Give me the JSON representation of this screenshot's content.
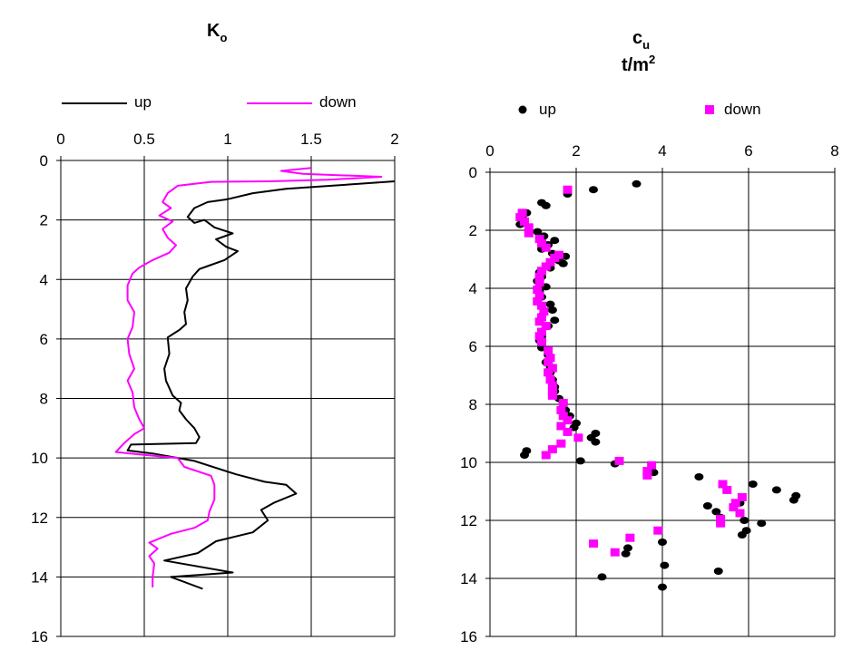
{
  "chart_data": [
    {
      "type": "line",
      "title": "K",
      "title_subscript": "o",
      "x_axis": {
        "range": [
          0,
          2
        ],
        "ticks": [
          0,
          0.5,
          1,
          1.5,
          2
        ],
        "tick_labels": [
          "0",
          "0.5",
          "1",
          "1.5",
          "2"
        ],
        "position": "top"
      },
      "y_axis": {
        "range": [
          0,
          16
        ],
        "reversed": true,
        "ticks": [
          0,
          2,
          4,
          6,
          8,
          10,
          12,
          14,
          16
        ],
        "tick_labels": [
          "0",
          "2",
          "4",
          "6",
          "8",
          "10",
          "12",
          "14",
          "16"
        ]
      },
      "grid": true,
      "legend": {
        "placement": "top"
      },
      "series": [
        {
          "name": "up",
          "color": "#000000",
          "points": [
            [
              2.0,
              0.7
            ],
            [
              1.62,
              0.85
            ],
            [
              1.35,
              0.95
            ],
            [
              1.15,
              1.1
            ],
            [
              1.0,
              1.3
            ],
            [
              0.88,
              1.4
            ],
            [
              0.8,
              1.6
            ],
            [
              0.76,
              1.9
            ],
            [
              0.8,
              2.1
            ],
            [
              0.86,
              2.0
            ],
            [
              0.92,
              2.25
            ],
            [
              1.03,
              2.45
            ],
            [
              0.93,
              2.65
            ],
            [
              0.99,
              2.9
            ],
            [
              1.06,
              3.05
            ],
            [
              0.98,
              3.35
            ],
            [
              0.88,
              3.55
            ],
            [
              0.83,
              3.65
            ],
            [
              0.79,
              3.9
            ],
            [
              0.75,
              4.3
            ],
            [
              0.76,
              4.7
            ],
            [
              0.74,
              5.1
            ],
            [
              0.75,
              5.5
            ],
            [
              0.71,
              5.7
            ],
            [
              0.64,
              5.95
            ],
            [
              0.65,
              6.5
            ],
            [
              0.62,
              7.0
            ],
            [
              0.63,
              7.4
            ],
            [
              0.67,
              7.9
            ],
            [
              0.72,
              8.15
            ],
            [
              0.71,
              8.4
            ],
            [
              0.75,
              8.7
            ],
            [
              0.8,
              9.0
            ],
            [
              0.83,
              9.3
            ],
            [
              0.81,
              9.5
            ],
            [
              0.42,
              9.55
            ],
            [
              0.4,
              9.75
            ],
            [
              0.55,
              9.85
            ],
            [
              0.8,
              10.1
            ],
            [
              1.05,
              10.55
            ],
            [
              1.22,
              10.8
            ],
            [
              1.35,
              10.9
            ],
            [
              1.41,
              11.2
            ],
            [
              1.28,
              11.5
            ],
            [
              1.2,
              11.75
            ],
            [
              1.24,
              12.1
            ],
            [
              1.15,
              12.5
            ],
            [
              0.93,
              12.8
            ],
            [
              0.82,
              13.2
            ],
            [
              0.62,
              13.45
            ],
            [
              1.03,
              13.85
            ],
            [
              0.66,
              14.0
            ],
            [
              0.85,
              14.4
            ]
          ]
        },
        {
          "name": "down",
          "color": "#ff00ff",
          "points": [
            [
              1.5,
              0.25
            ],
            [
              1.32,
              0.35
            ],
            [
              1.45,
              0.45
            ],
            [
              1.92,
              0.55
            ],
            [
              1.6,
              0.65
            ],
            [
              1.25,
              0.7
            ],
            [
              0.9,
              0.72
            ],
            [
              0.7,
              0.85
            ],
            [
              0.64,
              1.1
            ],
            [
              0.61,
              1.4
            ],
            [
              0.66,
              1.6
            ],
            [
              0.59,
              1.85
            ],
            [
              0.67,
              2.05
            ],
            [
              0.61,
              2.3
            ],
            [
              0.64,
              2.6
            ],
            [
              0.69,
              2.85
            ],
            [
              0.65,
              3.1
            ],
            [
              0.55,
              3.35
            ],
            [
              0.47,
              3.6
            ],
            [
              0.43,
              3.8
            ],
            [
              0.4,
              4.2
            ],
            [
              0.4,
              4.7
            ],
            [
              0.44,
              5.1
            ],
            [
              0.43,
              5.6
            ],
            [
              0.4,
              6.0
            ],
            [
              0.41,
              6.5
            ],
            [
              0.44,
              7.0
            ],
            [
              0.4,
              7.4
            ],
            [
              0.43,
              7.8
            ],
            [
              0.44,
              8.3
            ],
            [
              0.47,
              8.7
            ],
            [
              0.5,
              9.0
            ],
            [
              0.44,
              9.2
            ],
            [
              0.38,
              9.5
            ],
            [
              0.33,
              9.8
            ],
            [
              0.5,
              9.9
            ],
            [
              0.7,
              10.0
            ],
            [
              0.74,
              10.3
            ],
            [
              0.9,
              10.6
            ],
            [
              0.92,
              10.9
            ],
            [
              0.92,
              11.4
            ],
            [
              0.89,
              11.8
            ],
            [
              0.88,
              12.1
            ],
            [
              0.8,
              12.35
            ],
            [
              0.66,
              12.55
            ],
            [
              0.53,
              12.85
            ],
            [
              0.58,
              13.05
            ],
            [
              0.53,
              13.3
            ],
            [
              0.56,
              13.55
            ],
            [
              0.55,
              14.0
            ],
            [
              0.55,
              14.35
            ]
          ]
        }
      ]
    },
    {
      "type": "scatter",
      "title": "c",
      "title_subscript": "u",
      "subtitle": "t/m",
      "subtitle_superscript": "2",
      "x_axis": {
        "range": [
          0,
          8
        ],
        "ticks": [
          0,
          2,
          4,
          6,
          8
        ],
        "tick_labels": [
          "0",
          "2",
          "4",
          "6",
          "8"
        ],
        "position": "top"
      },
      "y_axis": {
        "range": [
          0,
          16
        ],
        "reversed": true,
        "ticks": [
          0,
          2,
          4,
          6,
          8,
          10,
          12,
          14,
          16
        ],
        "tick_labels": [
          "0",
          "2",
          "4",
          "6",
          "8",
          "10",
          "12",
          "14",
          "16"
        ]
      },
      "grid": true,
      "legend": {
        "placement": "top"
      },
      "series": [
        {
          "name": "up",
          "color": "#000000",
          "marker": "circle",
          "points": [
            [
              3.4,
              0.4
            ],
            [
              2.4,
              0.6
            ],
            [
              1.8,
              0.75
            ],
            [
              1.2,
              1.05
            ],
            [
              1.3,
              1.15
            ],
            [
              0.85,
              1.4
            ],
            [
              0.75,
              1.55
            ],
            [
              0.7,
              1.8
            ],
            [
              1.1,
              2.05
            ],
            [
              1.25,
              2.2
            ],
            [
              1.5,
              2.35
            ],
            [
              1.35,
              2.5
            ],
            [
              1.2,
              2.65
            ],
            [
              1.45,
              2.8
            ],
            [
              1.75,
              2.9
            ],
            [
              1.6,
              3.05
            ],
            [
              1.7,
              3.15
            ],
            [
              1.4,
              3.3
            ],
            [
              1.15,
              3.45
            ],
            [
              1.2,
              3.6
            ],
            [
              1.1,
              3.75
            ],
            [
              1.3,
              3.95
            ],
            [
              1.15,
              4.1
            ],
            [
              1.2,
              4.3
            ],
            [
              1.4,
              4.55
            ],
            [
              1.45,
              4.75
            ],
            [
              1.2,
              4.95
            ],
            [
              1.5,
              5.1
            ],
            [
              1.35,
              5.3
            ],
            [
              1.2,
              5.5
            ],
            [
              1.2,
              5.65
            ],
            [
              1.15,
              5.8
            ],
            [
              1.2,
              6.05
            ],
            [
              1.35,
              6.3
            ],
            [
              1.3,
              6.55
            ],
            [
              1.4,
              6.7
            ],
            [
              1.4,
              6.9
            ],
            [
              1.45,
              7.15
            ],
            [
              1.5,
              7.4
            ],
            [
              1.5,
              7.55
            ],
            [
              1.6,
              7.8
            ],
            [
              1.7,
              7.95
            ],
            [
              1.75,
              8.2
            ],
            [
              1.85,
              8.4
            ],
            [
              2.0,
              8.65
            ],
            [
              1.95,
              8.8
            ],
            [
              2.45,
              9.0
            ],
            [
              2.35,
              9.15
            ],
            [
              2.45,
              9.3
            ],
            [
              0.85,
              9.6
            ],
            [
              0.8,
              9.75
            ],
            [
              2.1,
              9.95
            ],
            [
              2.9,
              10.05
            ],
            [
              3.8,
              10.35
            ],
            [
              4.85,
              10.5
            ],
            [
              6.1,
              10.75
            ],
            [
              6.65,
              10.95
            ],
            [
              7.1,
              11.15
            ],
            [
              7.05,
              11.3
            ],
            [
              5.8,
              11.4
            ],
            [
              5.05,
              11.5
            ],
            [
              5.25,
              11.7
            ],
            [
              5.35,
              11.9
            ],
            [
              5.9,
              12.0
            ],
            [
              6.3,
              12.1
            ],
            [
              5.95,
              12.35
            ],
            [
              5.85,
              12.5
            ],
            [
              4.0,
              12.75
            ],
            [
              3.2,
              12.95
            ],
            [
              3.15,
              13.15
            ],
            [
              4.05,
              13.55
            ],
            [
              5.3,
              13.75
            ],
            [
              2.6,
              13.95
            ],
            [
              4.0,
              14.3
            ]
          ]
        },
        {
          "name": "down",
          "color": "#ff00ff",
          "marker": "square",
          "points": [
            [
              1.8,
              0.6
            ],
            [
              0.75,
              1.4
            ],
            [
              0.7,
              1.55
            ],
            [
              0.8,
              1.7
            ],
            [
              0.9,
              1.9
            ],
            [
              0.9,
              2.1
            ],
            [
              1.15,
              2.3
            ],
            [
              1.2,
              2.45
            ],
            [
              1.3,
              2.6
            ],
            [
              1.6,
              2.85
            ],
            [
              1.5,
              2.95
            ],
            [
              1.4,
              3.1
            ],
            [
              1.3,
              3.25
            ],
            [
              1.2,
              3.4
            ],
            [
              1.15,
              3.6
            ],
            [
              1.15,
              3.8
            ],
            [
              1.1,
              4.05
            ],
            [
              1.15,
              4.25
            ],
            [
              1.1,
              4.45
            ],
            [
              1.2,
              4.6
            ],
            [
              1.25,
              4.8
            ],
            [
              1.2,
              5.0
            ],
            [
              1.15,
              5.15
            ],
            [
              1.3,
              5.3
            ],
            [
              1.2,
              5.5
            ],
            [
              1.15,
              5.65
            ],
            [
              1.2,
              5.85
            ],
            [
              1.35,
              6.15
            ],
            [
              1.4,
              6.4
            ],
            [
              1.35,
              6.55
            ],
            [
              1.45,
              6.75
            ],
            [
              1.35,
              6.9
            ],
            [
              1.4,
              7.15
            ],
            [
              1.45,
              7.35
            ],
            [
              1.45,
              7.55
            ],
            [
              1.45,
              7.7
            ],
            [
              1.7,
              7.95
            ],
            [
              1.65,
              8.2
            ],
            [
              1.7,
              8.4
            ],
            [
              1.8,
              8.55
            ],
            [
              1.65,
              8.75
            ],
            [
              1.8,
              8.95
            ],
            [
              2.05,
              9.15
            ],
            [
              1.65,
              9.35
            ],
            [
              1.45,
              9.55
            ],
            [
              1.3,
              9.75
            ],
            [
              3.0,
              9.95
            ],
            [
              3.75,
              10.1
            ],
            [
              3.65,
              10.3
            ],
            [
              3.65,
              10.45
            ],
            [
              5.4,
              10.75
            ],
            [
              5.5,
              10.95
            ],
            [
              5.85,
              11.2
            ],
            [
              5.7,
              11.4
            ],
            [
              5.65,
              11.55
            ],
            [
              5.8,
              11.75
            ],
            [
              5.35,
              11.95
            ],
            [
              5.35,
              12.1
            ],
            [
              3.9,
              12.35
            ],
            [
              3.25,
              12.6
            ],
            [
              2.4,
              12.8
            ],
            [
              2.9,
              13.1
            ]
          ]
        }
      ]
    }
  ]
}
